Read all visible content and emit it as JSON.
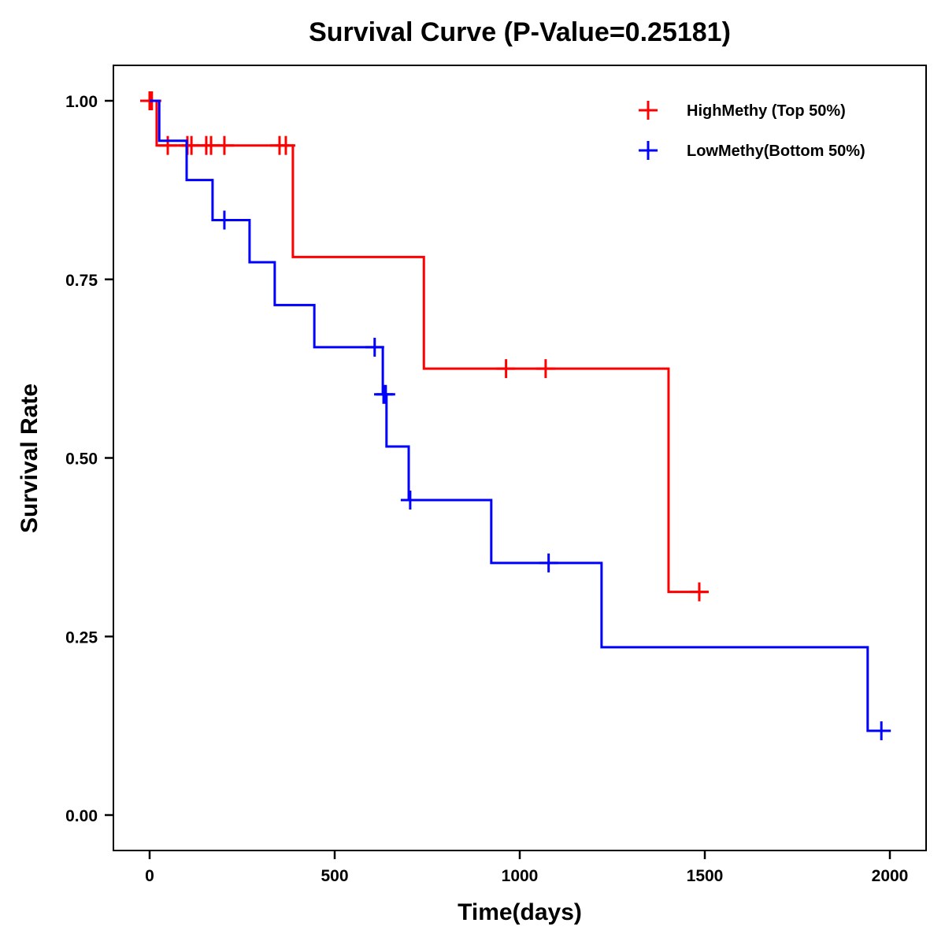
{
  "chart_data": {
    "type": "line",
    "subtype": "kaplan-meier step",
    "title": "Survival Curve (P-Value=0.25181)",
    "xlabel": "Time(days)",
    "ylabel": "Survival Rate",
    "xlim": [
      -95,
      2090
    ],
    "ylim": [
      -0.05,
      1.05
    ],
    "x_ticks": [
      0,
      500,
      1000,
      1500,
      2000
    ],
    "x_tick_labels": [
      "0",
      "500",
      "1000",
      "1500",
      "2000"
    ],
    "y_ticks": [
      0,
      0.25,
      0.5,
      0.75,
      1.0
    ],
    "y_tick_labels": [
      "0.00",
      "0.25",
      "0.50",
      "0.75",
      "1.00"
    ],
    "grid": false,
    "legend_position": "top-right",
    "series": [
      {
        "name": "HighMethy (Top 50%)",
        "color": "#ff0000",
        "steps": [
          {
            "t": 0,
            "s": 1.0
          },
          {
            "t": 19,
            "s": 0.9375
          },
          {
            "t": 387,
            "s": 0.78125
          },
          {
            "t": 741,
            "s": 0.625
          },
          {
            "t": 1402,
            "s": 0.3125
          }
        ],
        "end_time": 1510,
        "censored": [
          {
            "t": 0,
            "s": 1.0
          },
          {
            "t": 6,
            "s": 1.0
          },
          {
            "t": 49,
            "s": 0.9375
          },
          {
            "t": 102,
            "s": 0.9375
          },
          {
            "t": 113,
            "s": 0.9375
          },
          {
            "t": 153,
            "s": 0.9375
          },
          {
            "t": 166,
            "s": 0.9375
          },
          {
            "t": 202,
            "s": 0.9375
          },
          {
            "t": 351,
            "s": 0.9375
          },
          {
            "t": 368,
            "s": 0.9375
          },
          {
            "t": 963,
            "s": 0.625
          },
          {
            "t": 1070,
            "s": 0.625
          },
          {
            "t": 1485,
            "s": 0.3125
          }
        ]
      },
      {
        "name": "LowMethy(Bottom 50%)",
        "color": "#0000ff",
        "steps": [
          {
            "t": 0,
            "s": 1.0
          },
          {
            "t": 26,
            "s": 0.944
          },
          {
            "t": 100,
            "s": 0.889
          },
          {
            "t": 170,
            "s": 0.833
          },
          {
            "t": 270,
            "s": 0.774
          },
          {
            "t": 338,
            "s": 0.714
          },
          {
            "t": 445,
            "s": 0.655
          },
          {
            "t": 630,
            "s": 0.589
          },
          {
            "t": 640,
            "s": 0.516
          },
          {
            "t": 700,
            "s": 0.441
          },
          {
            "t": 923,
            "s": 0.353
          },
          {
            "t": 1221,
            "s": 0.235
          },
          {
            "t": 1940,
            "s": 0.118
          }
        ],
        "end_time": 1995,
        "censored": [
          {
            "t": 202,
            "s": 0.833
          },
          {
            "t": 608,
            "s": 0.655
          },
          {
            "t": 632,
            "s": 0.589
          },
          {
            "t": 638,
            "s": 0.589
          },
          {
            "t": 704,
            "s": 0.441
          },
          {
            "t": 1078,
            "s": 0.353
          },
          {
            "t": 1977,
            "s": 0.118
          }
        ]
      }
    ]
  }
}
